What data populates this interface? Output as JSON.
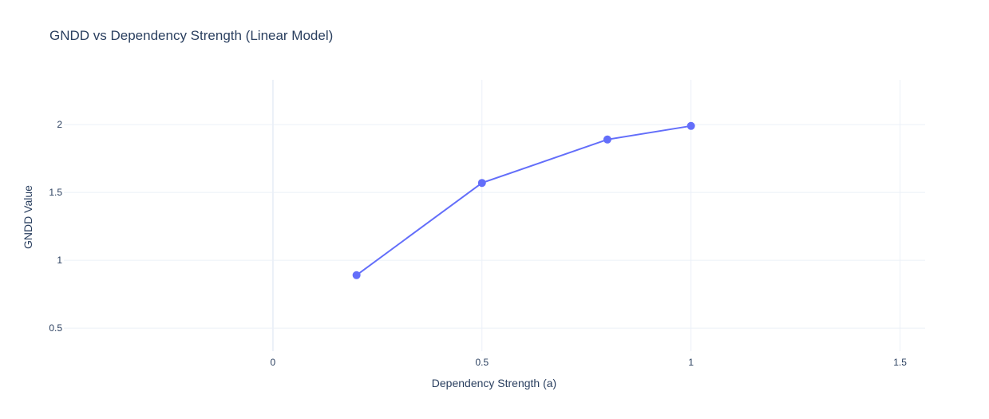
{
  "chart_data": {
    "type": "line",
    "title": "GNDD vs Dependency Strength (Linear Model)",
    "xlabel": "Dependency Strength (a)",
    "ylabel": "GNDD Value",
    "xlim": [
      -0.5,
      1.56
    ],
    "ylim": [
      0.33,
      2.33
    ],
    "x_ticks": [
      0,
      0.5,
      1,
      1.5
    ],
    "x_tick_labels": [
      "0",
      "0.5",
      "1",
      "1.5"
    ],
    "y_ticks": [
      0.5,
      1,
      1.5,
      2
    ],
    "y_tick_labels": [
      "0.5",
      "1",
      "1.5",
      "2"
    ],
    "grid": true,
    "series": [
      {
        "x": [
          0.2,
          0.5,
          0.8,
          1.0
        ],
        "y": [
          0.89,
          1.57,
          1.89,
          1.99
        ],
        "color": "#636efa",
        "mode": "lines+markers"
      }
    ]
  }
}
